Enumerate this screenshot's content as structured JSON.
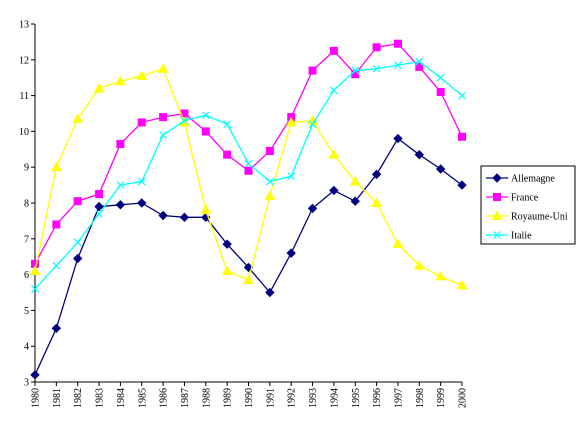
{
  "chart_data": {
    "type": "line",
    "title": "",
    "xlabel": "",
    "ylabel": "",
    "x": [
      "1980",
      "1981",
      "1982",
      "1983",
      "1984",
      "1985",
      "1986",
      "1987",
      "1988",
      "1989",
      "1990",
      "1991",
      "1992",
      "1993",
      "1994",
      "1995",
      "1996",
      "1997",
      "1998",
      "1999",
      "2000"
    ],
    "ylim": [
      3,
      13
    ],
    "yticks": [
      "3",
      "4",
      "5",
      "6",
      "7",
      "8",
      "9",
      "10",
      "11",
      "12",
      "13"
    ],
    "grid": false,
    "legend_position": "right",
    "series": [
      {
        "name": "Allemagne",
        "color": "#000080",
        "marker": "diamond",
        "values": [
          3.2,
          4.5,
          6.45,
          7.9,
          7.95,
          8.0,
          7.65,
          7.6,
          7.6,
          6.85,
          6.2,
          5.5,
          6.6,
          7.85,
          8.35,
          8.05,
          8.8,
          9.8,
          9.35,
          8.95,
          8.5
        ]
      },
      {
        "name": "France",
        "color": "#FF00FF",
        "marker": "square",
        "values": [
          6.3,
          7.4,
          8.05,
          8.25,
          9.65,
          10.25,
          10.4,
          10.5,
          10.0,
          9.35,
          8.9,
          9.45,
          10.4,
          11.7,
          12.25,
          11.6,
          12.35,
          12.45,
          11.8,
          11.1,
          9.85
        ]
      },
      {
        "name": "Royaume-Uni",
        "color": "#FFFF00",
        "marker": "triangle",
        "values": [
          6.1,
          9.0,
          10.35,
          11.2,
          11.4,
          11.55,
          11.75,
          10.25,
          7.8,
          6.1,
          5.85,
          8.2,
          10.25,
          10.3,
          9.35,
          8.6,
          8.0,
          6.85,
          6.25,
          5.95,
          5.7
        ]
      },
      {
        "name": "Italie",
        "color": "#00FFFF",
        "marker": "x",
        "values": [
          5.6,
          6.25,
          6.9,
          7.7,
          8.5,
          8.6,
          9.9,
          10.3,
          10.45,
          10.2,
          9.1,
          8.6,
          8.75,
          10.2,
          11.15,
          11.7,
          11.75,
          11.85,
          11.95,
          11.5,
          11.0
        ]
      }
    ]
  }
}
